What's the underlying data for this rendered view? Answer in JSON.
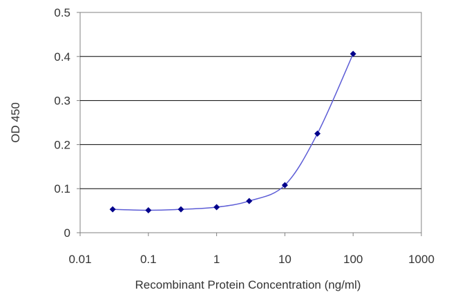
{
  "chart_data": {
    "type": "line",
    "title": "",
    "xlabel": "Recombinant Protein Concentration (ng/ml)",
    "ylabel": "OD 450",
    "x_scale": "log",
    "xlim": [
      0.01,
      1000
    ],
    "ylim": [
      0,
      0.5
    ],
    "x_ticks": [
      "0.01",
      "0.1",
      "1",
      "10",
      "100",
      "1000"
    ],
    "y_ticks": [
      "0",
      "0.1",
      "0.2",
      "0.3",
      "0.4",
      "0.5"
    ],
    "grid": "horizontal",
    "legend": "none",
    "series": [
      {
        "x": [
          0.03,
          0.1,
          0.3,
          1,
          3,
          10,
          30,
          100
        ],
        "y": [
          0.053,
          0.051,
          0.053,
          0.058,
          0.072,
          0.108,
          0.225,
          0.406
        ],
        "color": "#00008b",
        "line_color": "#5c5cd6"
      }
    ],
    "plot_background": "#ffffff",
    "gridline_color": "#000000"
  }
}
